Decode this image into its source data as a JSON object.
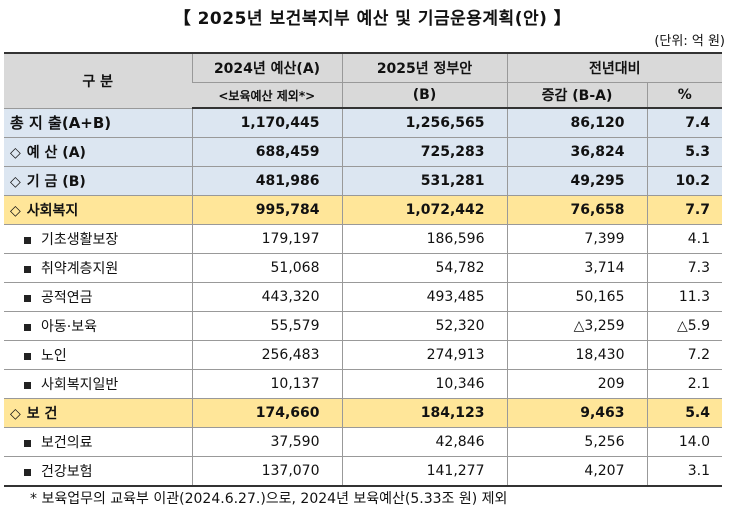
{
  "title": "【 2025년 보건복지부 예산 및 기금운용계획(안) 】",
  "unit": "(단위: 억 원)",
  "header": {
    "category": "구 분",
    "col2024": "2024년 예산(A)",
    "col2024_sub": "<보육예산 제외*>",
    "col2025": "2025년 정부안",
    "col2025_sub": "(B)",
    "yoy": "전년대비",
    "diff": "증감 (B-A)",
    "pct": "%"
  },
  "rows": [
    {
      "label": "총 지 출(A+B)",
      "a": "1,170,445",
      "b": "1,256,565",
      "diff": "86,120",
      "pct": "7.4"
    },
    {
      "label": "예 산 (A)",
      "a": "688,459",
      "b": "725,283",
      "diff": "36,824",
      "pct": "5.3"
    },
    {
      "label": "기 금 (B)",
      "a": "481,986",
      "b": "531,281",
      "diff": "49,295",
      "pct": "10.2"
    },
    {
      "label": "사회복지",
      "a": "995,784",
      "b": "1,072,442",
      "diff": "76,658",
      "pct": "7.7"
    },
    {
      "label": "기초생활보장",
      "a": "179,197",
      "b": "186,596",
      "diff": "7,399",
      "pct": "4.1"
    },
    {
      "label": "취약계층지원",
      "a": "51,068",
      "b": "54,782",
      "diff": "3,714",
      "pct": "7.3"
    },
    {
      "label": "공적연금",
      "a": "443,320",
      "b": "493,485",
      "diff": "50,165",
      "pct": "11.3"
    },
    {
      "label": "아동·보육",
      "a": "55,579",
      "b": "52,320",
      "diff": "△3,259",
      "pct": "△5.9"
    },
    {
      "label": "노인",
      "a": "256,483",
      "b": "274,913",
      "diff": "18,430",
      "pct": "7.2"
    },
    {
      "label": "사회복지일반",
      "a": "10,137",
      "b": "10,346",
      "diff": "209",
      "pct": "2.1"
    },
    {
      "label": "보 건",
      "a": "174,660",
      "b": "184,123",
      "diff": "9,463",
      "pct": "5.4"
    },
    {
      "label": "보건의료",
      "a": "37,590",
      "b": "42,846",
      "diff": "5,256",
      "pct": "14.0"
    },
    {
      "label": "건강보험",
      "a": "137,070",
      "b": "141,277",
      "diff": "4,207",
      "pct": "3.1"
    }
  ],
  "marker_diamond": "◇",
  "note": "* 보육업무의 교육부 이관(2024.6.27.)으로, 2024년 보육예산(5.33조 원) 제외"
}
